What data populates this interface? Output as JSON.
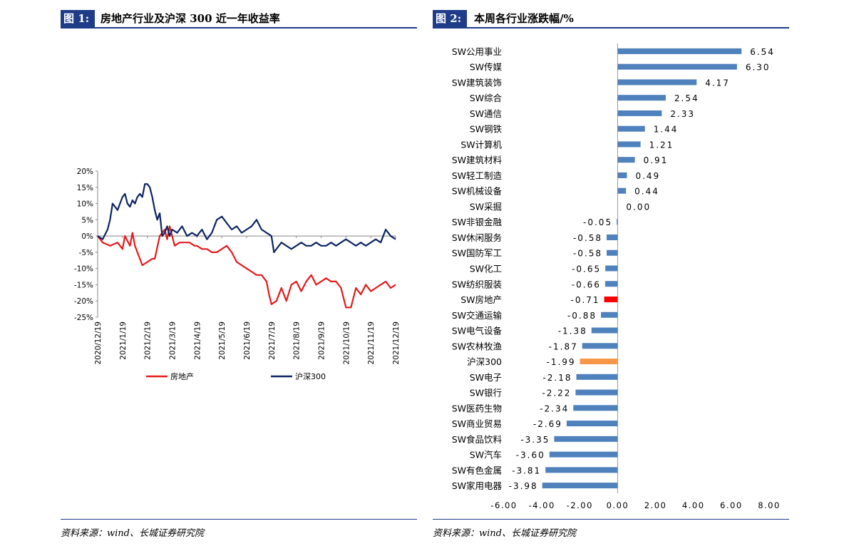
{
  "left": {
    "fig_label": "图 1:",
    "fig_title": "房地产行业及沪深 300 近一年收益率",
    "source": "资料来源：wind、长城证券研究院"
  },
  "right": {
    "fig_label": "图 2:",
    "fig_title": "本周各行业涨跌幅/%",
    "source": "资料来源：wind、长城证券研究院"
  },
  "chart_data": [
    {
      "type": "line",
      "title": "房地产行业及沪深 300 近一年收益率",
      "x_ticks": [
        "2020/12/19",
        "2021/1/19",
        "2021/2/19",
        "2021/3/19",
        "2021/4/19",
        "2021/5/19",
        "2021/6/19",
        "2021/7/19",
        "2021/8/19",
        "2021/9/19",
        "2021/10/19",
        "2021/11/19",
        "2021/12/19"
      ],
      "y_ticks": [
        "20%",
        "15%",
        "10%",
        "5%",
        "0%",
        "-5%",
        "-10%",
        "-15%",
        "-20%",
        "-25%"
      ],
      "ylim": [
        -25,
        20
      ],
      "series": [
        {
          "name": "房地产",
          "color": "#e31a1c",
          "x": [
            0,
            0.2,
            0.5,
            0.8,
            1,
            1.1,
            1.3,
            1.4,
            1.5,
            1.6,
            1.8,
            2,
            2.2,
            2.3,
            2.5,
            2.7,
            2.8,
            2.9,
            3,
            3.1,
            3.3,
            3.5,
            3.7,
            3.9,
            4,
            4.2,
            4.4,
            4.6,
            4.8,
            5,
            5.2,
            5.4,
            5.6,
            5.8,
            6,
            6.2,
            6.4,
            6.6,
            6.8,
            6.9,
            7,
            7.2,
            7.4,
            7.6,
            7.8,
            8,
            8.2,
            8.4,
            8.6,
            8.8,
            9,
            9.2,
            9.4,
            9.6,
            9.8,
            10,
            10.2,
            10.4,
            10.6,
            10.8,
            11,
            11.2,
            11.4,
            11.6,
            11.8,
            12
          ],
          "y": [
            0,
            -2,
            -3,
            -2,
            -4,
            0,
            -3,
            1,
            -3,
            -5,
            -9,
            -8,
            -7,
            -7,
            0,
            2,
            -1,
            3,
            0,
            -3,
            -2,
            -2,
            -2,
            -3,
            -3,
            -4,
            -4,
            -5,
            -5,
            -4,
            -3,
            -5,
            -8,
            -9,
            -10,
            -11,
            -12,
            -12,
            -14,
            -18,
            -21,
            -20,
            -16,
            -20,
            -15,
            -14,
            -17,
            -14,
            -12,
            -15,
            -14,
            -13,
            -14,
            -14,
            -16,
            -22,
            -22,
            -16,
            -18,
            -15,
            -17,
            -16,
            -15,
            -14,
            -16,
            -15
          ]
        },
        {
          "name": "沪深300",
          "color": "#0d2463",
          "x": [
            0,
            0.2,
            0.4,
            0.5,
            0.6,
            0.7,
            0.8,
            1,
            1.1,
            1.2,
            1.3,
            1.4,
            1.5,
            1.6,
            1.7,
            1.8,
            1.9,
            2,
            2.1,
            2.2,
            2.3,
            2.4,
            2.5,
            2.6,
            2.7,
            2.8,
            2.9,
            3,
            3.2,
            3.4,
            3.6,
            3.8,
            4,
            4.2,
            4.4,
            4.6,
            4.8,
            5,
            5.2,
            5.4,
            5.6,
            5.8,
            6,
            6.2,
            6.4,
            6.6,
            6.8,
            7,
            7.1,
            7.2,
            7.4,
            7.6,
            7.8,
            8,
            8.2,
            8.4,
            8.6,
            8.8,
            9,
            9.2,
            9.4,
            9.6,
            9.8,
            10,
            10.2,
            10.4,
            10.6,
            10.8,
            11,
            11.2,
            11.4,
            11.6,
            11.8,
            12
          ],
          "y": [
            0,
            -1,
            2,
            5,
            10,
            9,
            8,
            12,
            13,
            10,
            9,
            11,
            10,
            12,
            13,
            12,
            16,
            16,
            15,
            12,
            8,
            5,
            7,
            0,
            1,
            3,
            0,
            2,
            1,
            3,
            0,
            1,
            0,
            2,
            -1,
            1,
            5,
            6,
            4,
            2,
            3,
            1,
            2,
            3,
            5,
            2,
            1,
            0,
            -5,
            -4,
            -2,
            -3,
            -4,
            -3,
            -2,
            -3,
            -3,
            -2,
            -3,
            -3,
            -2,
            -3,
            -2,
            -1,
            -2,
            -3,
            -2,
            -3,
            -2,
            -1,
            -2,
            2,
            0,
            -1
          ]
        }
      ]
    },
    {
      "type": "bar",
      "orientation": "horizontal",
      "title": "本周各行业涨跌幅/%",
      "xlim": [
        -6,
        8
      ],
      "x_ticks": [
        "-6.00",
        "-4.00",
        "-2.00",
        "0.00",
        "2.00",
        "4.00",
        "6.00",
        "8.00"
      ],
      "categories": [
        "SW公用事业",
        "SW传媒",
        "SW建筑装饰",
        "SW综合",
        "SW通信",
        "SW钢铁",
        "SW计算机",
        "SW建筑材料",
        "SW轻工制造",
        "SW机械设备",
        "SW采掘",
        "SW非银金融",
        "SW休闲服务",
        "SW国防军工",
        "SW化工",
        "SW纺织服装",
        "SW房地产",
        "SW交通运输",
        "SW电气设备",
        "SW农林牧渔",
        "沪深300",
        "SW电子",
        "SW银行",
        "SW医药生物",
        "SW商业贸易",
        "SW食品饮料",
        "SW汽车",
        "SW有色金属",
        "SW家用电器"
      ],
      "values": [
        6.54,
        6.3,
        4.17,
        2.54,
        2.33,
        1.44,
        1.21,
        0.91,
        0.49,
        0.44,
        0.0,
        -0.05,
        -0.58,
        -0.58,
        -0.65,
        -0.66,
        -0.71,
        -0.88,
        -1.38,
        -1.87,
        -1.99,
        -2.18,
        -2.22,
        -2.34,
        -2.69,
        -3.35,
        -3.6,
        -3.81,
        -3.98
      ],
      "labels": [
        "6.54",
        "6.30",
        "4.17",
        "2.54",
        "2.33",
        "1.44",
        "1.21",
        "0.91",
        "0.49",
        "0.44",
        "0.00",
        "-0.05",
        "-0.58",
        "-0.58",
        "-0.65",
        "-0.66",
        "-0.71",
        "-0.88",
        "-1.38",
        "-1.87",
        "-1.99",
        "-2.18",
        "-2.22",
        "-2.34",
        "-2.69",
        "-3.35",
        "-3.60",
        "-3.81",
        "-3.98"
      ],
      "bar_color": "#4f81bd",
      "highlight": {
        "SW房地产": "#ff0000",
        "沪深300": "#f79646"
      }
    }
  ]
}
